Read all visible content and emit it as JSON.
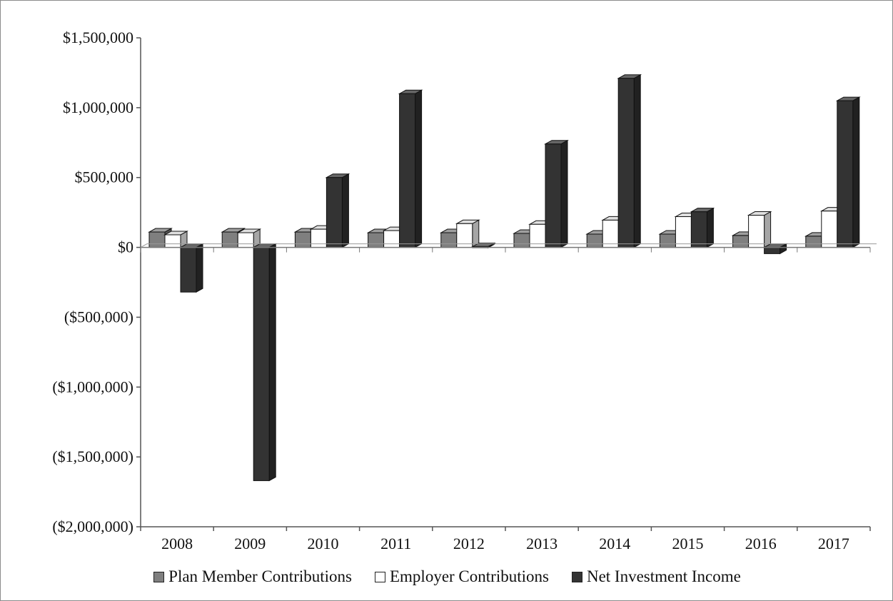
{
  "chart_data": {
    "type": "bar",
    "title": "",
    "xlabel": "",
    "ylabel": "",
    "ylim": [
      -2000000,
      1500000
    ],
    "yticks": [
      1500000,
      1000000,
      500000,
      0,
      -500000,
      -1000000,
      -1500000,
      -2000000
    ],
    "ytick_labels": [
      "$1,500,000",
      "$1,000,000",
      "$500,000",
      "$0",
      "($500,000)",
      "($1,000,000)",
      "($1,500,000)",
      "($2,000,000)"
    ],
    "categories": [
      "2008",
      "2009",
      "2010",
      "2011",
      "2012",
      "2013",
      "2014",
      "2015",
      "2016",
      "2017"
    ],
    "grid": false,
    "legend_position": "bottom",
    "style": "3d-clustered-column",
    "series": [
      {
        "name": "Plan Member Contributions",
        "color": "#7f7f7f",
        "values": [
          110000,
          110000,
          110000,
          105000,
          105000,
          100000,
          95000,
          95000,
          85000,
          80000
        ]
      },
      {
        "name": "Employer Contributions",
        "color": "#ffffff",
        "values": [
          90000,
          105000,
          130000,
          120000,
          170000,
          165000,
          195000,
          220000,
          230000,
          260000
        ]
      },
      {
        "name": "Net Investment Income",
        "color": "#333333",
        "values": [
          -320000,
          -1670000,
          500000,
          1100000,
          5000,
          740000,
          1210000,
          255000,
          -45000,
          1050000
        ]
      }
    ]
  }
}
